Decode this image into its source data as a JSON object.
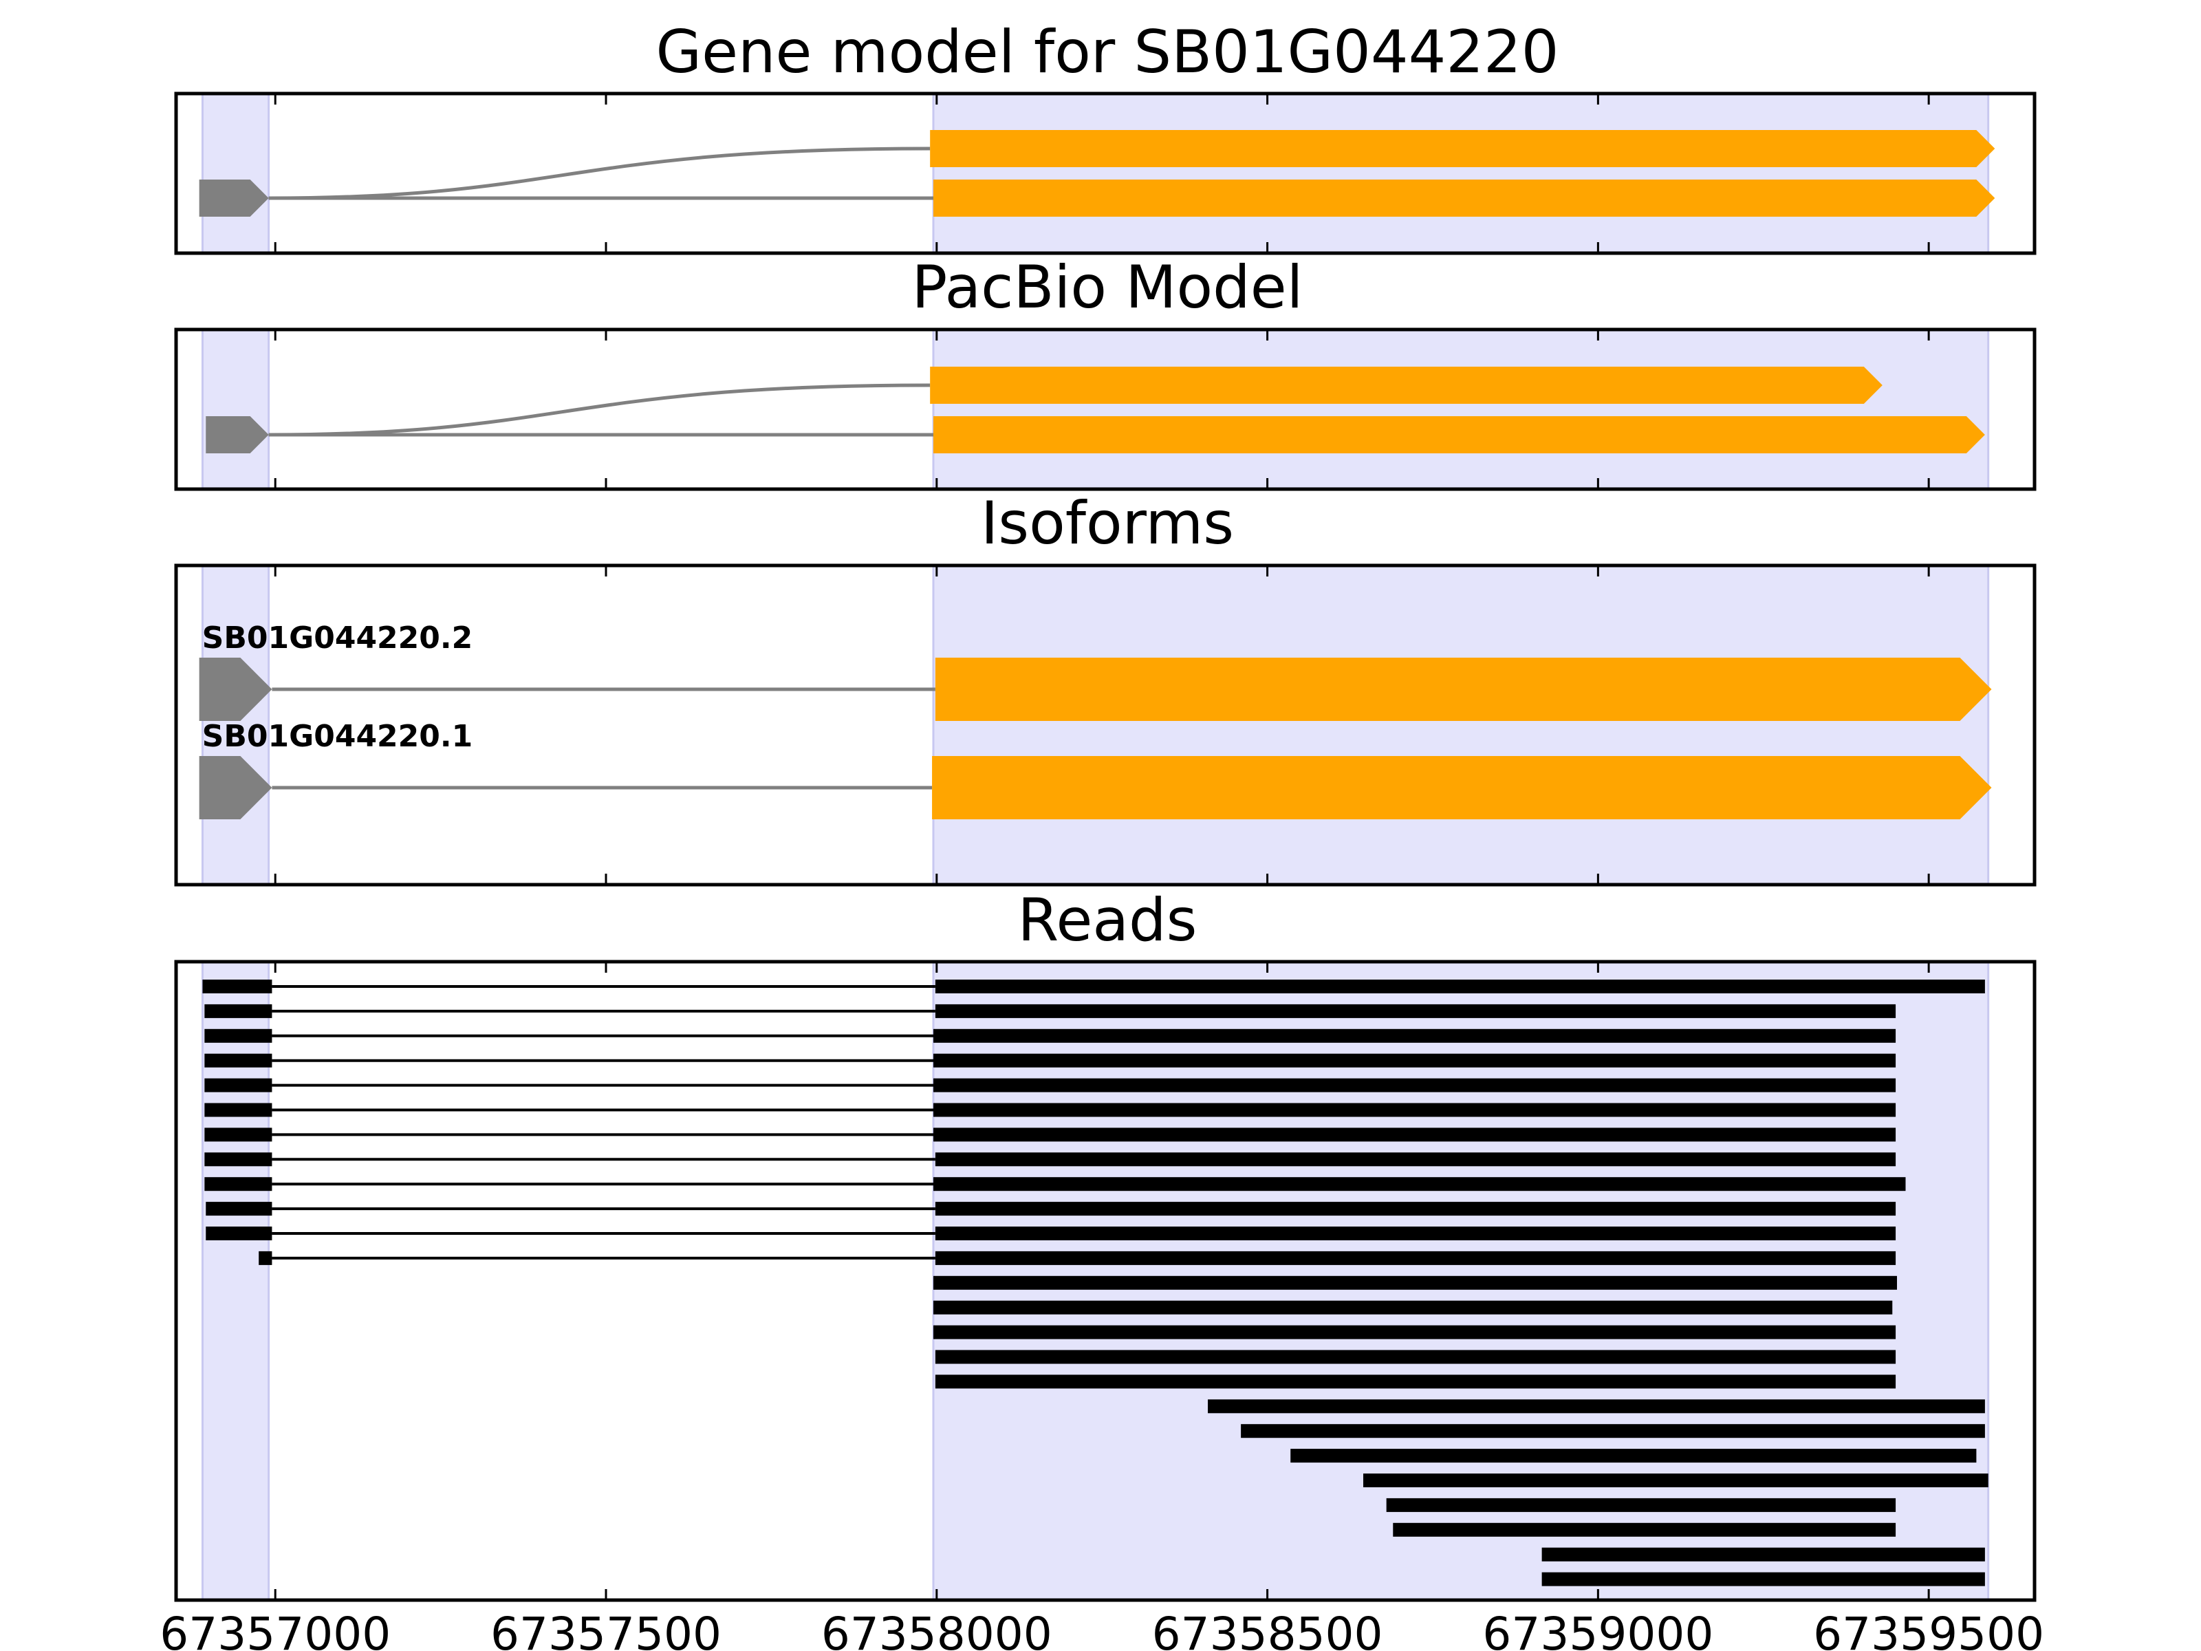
{
  "colors": {
    "exon_noncoding": "#808080",
    "exon_coding": "#ffa500",
    "intron": "#808080",
    "highlight": "#e4e4fb",
    "highlight_edge": "#c8c8f0",
    "read": "#000000",
    "frame": "#000000"
  },
  "x_axis": {
    "range": [
      67356850,
      67359660
    ],
    "ticks": [
      67357000,
      67357500,
      67358000,
      67358500,
      67359000,
      67359500
    ],
    "tick_labels": [
      "67357000",
      "67357500",
      "67358000",
      "67358500",
      "67359000",
      "67359500"
    ]
  },
  "highlight_regions": [
    [
      67356890,
      67356990
    ],
    [
      67357995,
      67359590
    ]
  ],
  "panels": {
    "gene_model": {
      "title": "Gene model for SB01G044220",
      "transcripts": [
        {
          "exons": [
            {
              "start": 67357990,
              "end": 67359600,
              "coding": true
            }
          ],
          "intron_from": 67356990
        },
        {
          "exons": [
            {
              "start": 67356885,
              "end": 67356990,
              "coding": false
            },
            {
              "start": 67357995,
              "end": 67359600,
              "coding": true
            }
          ]
        }
      ]
    },
    "pacbio": {
      "title": "PacBio Model",
      "transcripts": [
        {
          "exons": [
            {
              "start": 67357990,
              "end": 67359430,
              "coding": true
            }
          ],
          "intron_from": 67356990
        },
        {
          "exons": [
            {
              "start": 67356895,
              "end": 67356990,
              "coding": false
            },
            {
              "start": 67357995,
              "end": 67359585,
              "coding": true
            }
          ]
        }
      ]
    },
    "isoforms": {
      "title": "Isoforms",
      "transcripts": [
        {
          "label": "SB01G044220.2",
          "exons": [
            {
              "start": 67356885,
              "end": 67356995,
              "coding": false
            },
            {
              "start": 67357998,
              "end": 67359595,
              "coding": true
            }
          ]
        },
        {
          "label": "SB01G044220.1",
          "exons": [
            {
              "start": 67356885,
              "end": 67356995,
              "coding": false
            },
            {
              "start": 67357993,
              "end": 67359595,
              "coding": true
            }
          ]
        }
      ]
    },
    "reads": {
      "title": "Reads",
      "reads": [
        [
          [
            67356890,
            67356995
          ],
          [
            67357998,
            67359585
          ]
        ],
        [
          [
            67356893,
            67356995
          ],
          [
            67357998,
            67359450
          ]
        ],
        [
          [
            67356893,
            67356995
          ],
          [
            67357995,
            67359450
          ]
        ],
        [
          [
            67356893,
            67356995
          ],
          [
            67357995,
            67359450
          ]
        ],
        [
          [
            67356893,
            67356995
          ],
          [
            67357995,
            67359450
          ]
        ],
        [
          [
            67356893,
            67356995
          ],
          [
            67357995,
            67359450
          ]
        ],
        [
          [
            67356893,
            67356995
          ],
          [
            67357995,
            67359450
          ]
        ],
        [
          [
            67356893,
            67356995
          ],
          [
            67357998,
            67359450
          ]
        ],
        [
          [
            67356893,
            67356995
          ],
          [
            67357995,
            67359465
          ]
        ],
        [
          [
            67356895,
            67356995
          ],
          [
            67357998,
            67359450
          ]
        ],
        [
          [
            67356895,
            67356995
          ],
          [
            67357998,
            67359450
          ]
        ],
        [
          [
            67356975,
            67356995
          ],
          [
            67357998,
            67359450
          ]
        ],
        [
          [
            67357995,
            67359452
          ]
        ],
        [
          [
            67357995,
            67359445
          ]
        ],
        [
          [
            67357995,
            67359450
          ]
        ],
        [
          [
            67357998,
            67359450
          ]
        ],
        [
          [
            67357998,
            67359450
          ]
        ],
        [
          [
            67358410,
            67359585
          ]
        ],
        [
          [
            67358460,
            67359585
          ]
        ],
        [
          [
            67358535,
            67359572
          ]
        ],
        [
          [
            67358645,
            67359590
          ]
        ],
        [
          [
            67358680,
            67359450
          ]
        ],
        [
          [
            67358690,
            67359450
          ]
        ],
        [
          [
            67358915,
            67359585
          ]
        ],
        [
          [
            67358915,
            67359585
          ]
        ]
      ]
    }
  }
}
